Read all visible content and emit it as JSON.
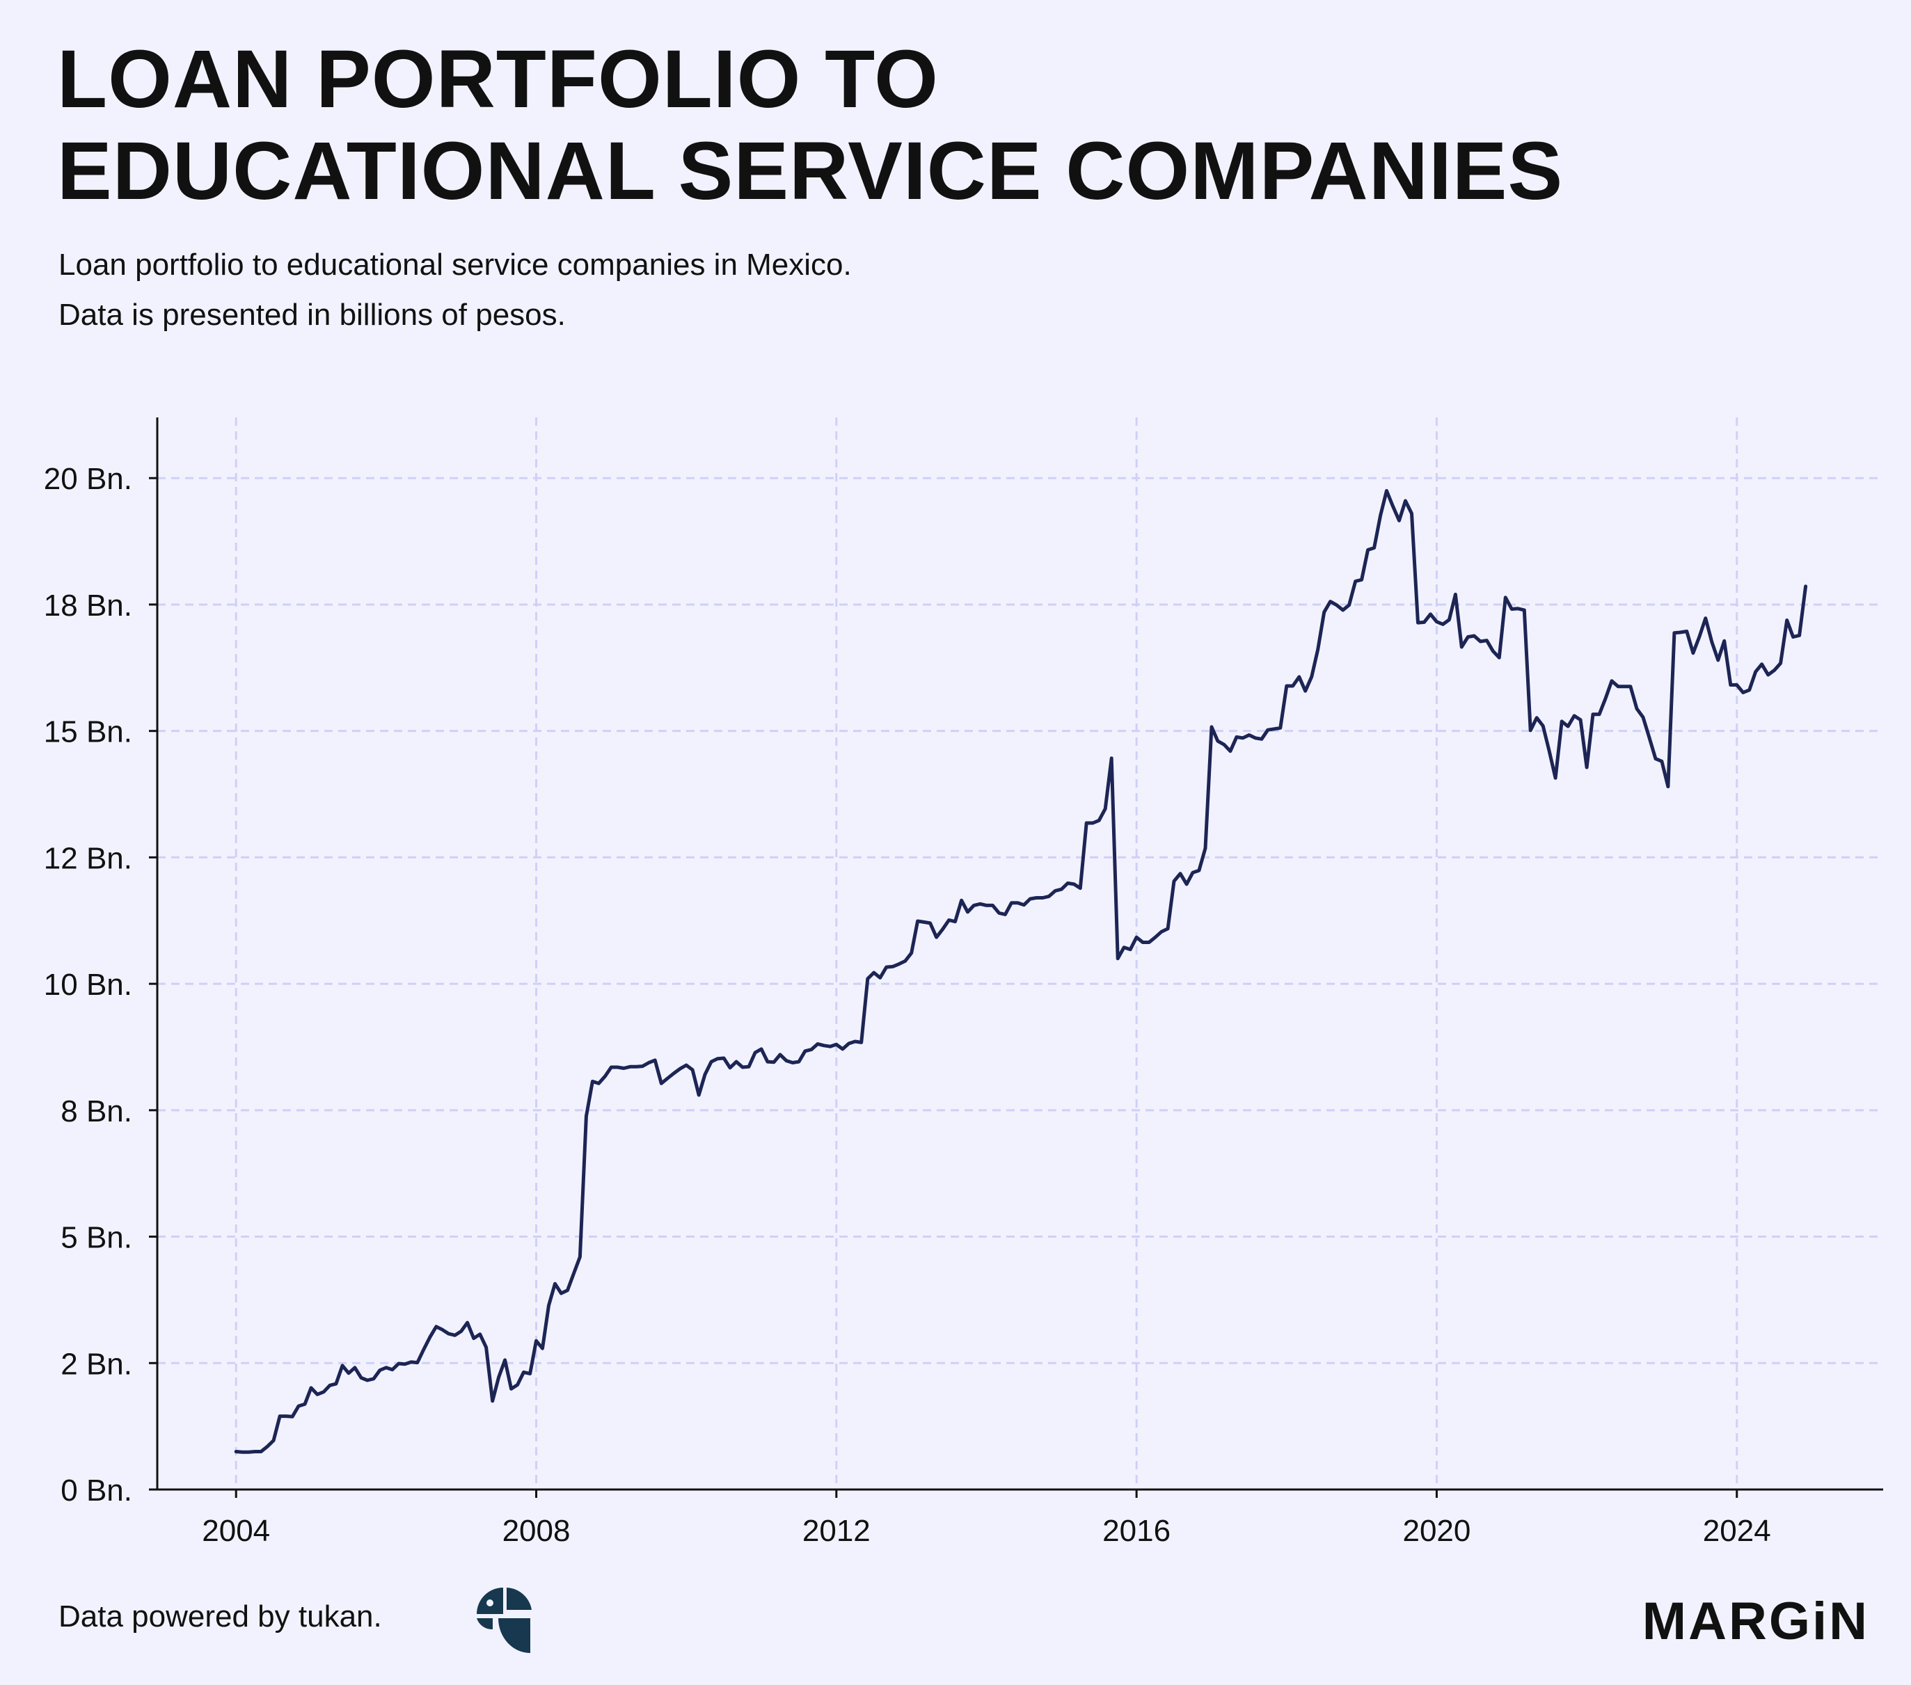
{
  "header": {
    "title_line1": "LOAN PORTFOLIO TO",
    "title_line2": "EDUCATIONAL SERVICE COMPANIES",
    "subtitle_line1": "Loan portfolio to educational service companies in Mexico.",
    "subtitle_line2": "Data is presented in billions of pesos."
  },
  "footer": {
    "source_text": "Data powered by tukan.",
    "brand_logo": "MARGiN",
    "source_logo_icon": "tukan-logo-icon"
  },
  "colors": {
    "background": "#f2f2fe",
    "line": "#1c2554",
    "grid": "#cfd0f8",
    "axis": "#111111",
    "text": "#111111",
    "logo": "#17384f"
  },
  "chart_data": {
    "type": "line",
    "title": "",
    "xlabel": "",
    "ylabel": "",
    "x_ticks": [
      2004,
      2008,
      2012,
      2016,
      2020,
      2024
    ],
    "x_tick_labels": [
      "2004",
      "2008",
      "2012",
      "2016",
      "2020",
      "2024"
    ],
    "y_ticks": [
      0,
      2.5,
      5,
      7.5,
      10,
      12.5,
      15,
      17.5,
      20
    ],
    "y_tick_labels": [
      "0 Bn.",
      "2 Bn.",
      "5 Bn.",
      "8 Bn.",
      "10 Bn.",
      "12 Bn.",
      "15 Bn.",
      "18 Bn.",
      "20 Bn."
    ],
    "xlim": [
      2002.95,
      2025.95
    ],
    "ylim": [
      0,
      21.2
    ],
    "grid": true,
    "legend": "none",
    "series": [
      {
        "x": [
          2004.0,
          2004.083,
          2004.167,
          2004.25,
          2004.333,
          2004.417,
          2004.5,
          2004.583,
          2004.667,
          2004.75,
          2004.833,
          2004.917,
          2005.0,
          2005.083,
          2005.167,
          2005.25,
          2005.333,
          2005.417,
          2005.5,
          2005.583,
          2005.667,
          2005.75,
          2005.833,
          2005.917,
          2006.0,
          2006.083,
          2006.167,
          2006.25,
          2006.333,
          2006.417,
          2006.5,
          2006.583,
          2006.667,
          2006.75,
          2006.833,
          2006.917,
          2007.0,
          2007.083,
          2007.167,
          2007.25,
          2007.333,
          2007.417,
          2007.5,
          2007.583,
          2007.667,
          2007.75,
          2007.833,
          2007.917,
          2008.0,
          2008.083,
          2008.167,
          2008.25,
          2008.333,
          2008.417,
          2008.5,
          2008.583,
          2008.667,
          2008.75,
          2008.833,
          2008.917,
          2009.0,
          2009.083,
          2009.167,
          2009.25,
          2009.333,
          2009.417,
          2009.5,
          2009.583,
          2009.667,
          2009.75,
          2009.833,
          2009.917,
          2010.0,
          2010.083,
          2010.167,
          2010.25,
          2010.333,
          2010.417,
          2010.5,
          2010.583,
          2010.667,
          2010.75,
          2010.833,
          2010.917,
          2011.0,
          2011.083,
          2011.167,
          2011.25,
          2011.333,
          2011.417,
          2011.5,
          2011.583,
          2011.667,
          2011.75,
          2011.833,
          2011.917,
          2012.0,
          2012.083,
          2012.167,
          2012.25,
          2012.333,
          2012.417,
          2012.5,
          2012.583,
          2012.667,
          2012.75,
          2012.833,
          2012.917,
          2013.0,
          2013.083,
          2013.167,
          2013.25,
          2013.333,
          2013.417,
          2013.5,
          2013.583,
          2013.667,
          2013.75,
          2013.833,
          2013.917,
          2014.0,
          2014.083,
          2014.167,
          2014.25,
          2014.333,
          2014.417,
          2014.5,
          2014.583,
          2014.667,
          2014.75,
          2014.833,
          2014.917,
          2015.0,
          2015.083,
          2015.167,
          2015.25,
          2015.333,
          2015.417,
          2015.5,
          2015.583,
          2015.667,
          2015.75,
          2015.833,
          2015.917,
          2016.0,
          2016.083,
          2016.167,
          2016.25,
          2016.333,
          2016.417,
          2016.5,
          2016.583,
          2016.667,
          2016.75,
          2016.833,
          2016.917,
          2017.0,
          2017.083,
          2017.167,
          2017.25,
          2017.333,
          2017.417,
          2017.5,
          2017.583,
          2017.667,
          2017.75,
          2017.833,
          2017.917,
          2018.0,
          2018.083,
          2018.167,
          2018.25,
          2018.333,
          2018.417,
          2018.5,
          2018.583,
          2018.667,
          2018.75,
          2018.833,
          2018.917,
          2019.0,
          2019.083,
          2019.167,
          2019.25,
          2019.333,
          2019.417,
          2019.5,
          2019.583,
          2019.667,
          2019.75,
          2019.833,
          2019.917,
          2020.0,
          2020.083,
          2020.167,
          2020.25,
          2020.333,
          2020.417,
          2020.5,
          2020.583,
          2020.667,
          2020.75,
          2020.833,
          2020.917,
          2021.0,
          2021.083,
          2021.167,
          2021.25,
          2021.333,
          2021.417,
          2021.5,
          2021.583,
          2021.667,
          2021.75,
          2021.833,
          2021.917,
          2022.0,
          2022.083,
          2022.167,
          2022.25,
          2022.333,
          2022.417,
          2022.5,
          2022.583,
          2022.667,
          2022.75,
          2022.833,
          2022.917,
          2023.0,
          2023.083,
          2023.167,
          2023.25,
          2023.333,
          2023.417,
          2023.5,
          2023.583,
          2023.667,
          2023.75,
          2023.833,
          2023.917,
          2024.0,
          2024.083,
          2024.167,
          2024.25,
          2024.333,
          2024.417,
          2024.5,
          2024.583,
          2024.667,
          2024.75,
          2024.833,
          2024.917
        ],
        "y": [
          0.75,
          0.74,
          0.74,
          0.75,
          0.75,
          0.85,
          0.97,
          1.45,
          1.45,
          1.44,
          1.65,
          1.69,
          2.01,
          1.88,
          1.93,
          2.06,
          2.09,
          2.45,
          2.3,
          2.41,
          2.21,
          2.16,
          2.19,
          2.36,
          2.41,
          2.37,
          2.49,
          2.48,
          2.52,
          2.51,
          2.77,
          3.01,
          3.22,
          3.16,
          3.08,
          3.05,
          3.13,
          3.3,
          2.99,
          3.07,
          2.81,
          1.75,
          2.22,
          2.56,
          1.99,
          2.07,
          2.32,
          2.29,
          2.94,
          2.79,
          3.64,
          4.07,
          3.88,
          3.94,
          4.27,
          4.6,
          7.38,
          8.07,
          8.03,
          8.17,
          8.35,
          8.35,
          8.33,
          8.36,
          8.36,
          8.37,
          8.44,
          8.49,
          8.03,
          8.13,
          8.23,
          8.32,
          8.39,
          8.3,
          7.8,
          8.21,
          8.46,
          8.52,
          8.53,
          8.34,
          8.46,
          8.35,
          8.36,
          8.64,
          8.71,
          8.46,
          8.45,
          8.6,
          8.48,
          8.44,
          8.46,
          8.67,
          8.7,
          8.81,
          8.78,
          8.76,
          8.8,
          8.71,
          8.82,
          8.86,
          8.84,
          10.1,
          10.22,
          10.12,
          10.33,
          10.34,
          10.39,
          10.45,
          10.61,
          11.24,
          11.22,
          11.2,
          10.92,
          11.08,
          11.26,
          11.23,
          11.65,
          11.42,
          11.55,
          11.58,
          11.55,
          11.55,
          11.4,
          11.37,
          11.6,
          11.6,
          11.56,
          11.68,
          11.7,
          11.7,
          11.73,
          11.84,
          11.87,
          11.99,
          11.97,
          11.89,
          13.18,
          13.18,
          13.23,
          13.46,
          14.46,
          10.5,
          10.72,
          10.68,
          10.92,
          10.82,
          10.82,
          10.92,
          11.03,
          11.09,
          12.03,
          12.18,
          11.97,
          12.2,
          12.24,
          12.68,
          15.08,
          14.8,
          14.73,
          14.6,
          14.88,
          14.86,
          14.92,
          14.86,
          14.84,
          15.02,
          15.04,
          15.06,
          15.89,
          15.89,
          16.07,
          15.79,
          16.07,
          16.61,
          17.35,
          17.56,
          17.49,
          17.39,
          17.49,
          17.96,
          17.99,
          18.58,
          18.62,
          19.26,
          19.75,
          19.44,
          19.16,
          19.55,
          19.3,
          17.14,
          17.15,
          17.31,
          17.16,
          17.11,
          17.2,
          17.7,
          16.66,
          16.86,
          16.88,
          16.77,
          16.79,
          16.58,
          16.45,
          17.64,
          17.41,
          17.42,
          17.39,
          15.01,
          15.26,
          15.1,
          14.6,
          14.07,
          15.19,
          15.09,
          15.3,
          15.22,
          14.28,
          15.33,
          15.33,
          15.64,
          15.99,
          15.88,
          15.88,
          15.88,
          15.44,
          15.27,
          14.87,
          14.45,
          14.4,
          13.9,
          16.94,
          16.95,
          16.97,
          16.54,
          16.86,
          17.23,
          16.76,
          16.4,
          16.78,
          15.91,
          15.91,
          15.76,
          15.81,
          16.17,
          16.32,
          16.11,
          16.2,
          16.34,
          17.19,
          16.86,
          16.89,
          17.86
        ]
      }
    ]
  }
}
